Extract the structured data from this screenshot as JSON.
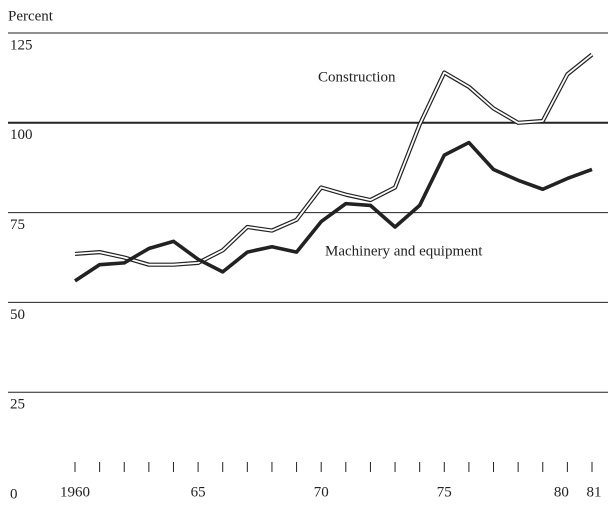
{
  "chart_data": {
    "type": "line",
    "y_axis_label": "Percent",
    "x": [
      1960,
      1961,
      1962,
      1963,
      1964,
      1965,
      1966,
      1967,
      1968,
      1969,
      1970,
      1971,
      1972,
      1973,
      1974,
      1975,
      1976,
      1977,
      1978,
      1979,
      1980,
      1981
    ],
    "series": [
      {
        "name": "Construction",
        "color": "#222222",
        "style": "double",
        "values": [
          63.5,
          64,
          62.5,
          60.5,
          60.5,
          61,
          64.5,
          71,
          70,
          73,
          82,
          80,
          78.5,
          82,
          99.5,
          114,
          110,
          104,
          100,
          100.5,
          113.5,
          119
        ]
      },
      {
        "name": "Machinery and equipment",
        "color": "#222222",
        "style": "solid",
        "values": [
          56,
          60.5,
          61,
          65,
          67,
          62,
          58.5,
          64,
          65.5,
          64,
          72.5,
          77.5,
          77,
          71,
          77,
          91,
          94.5,
          87,
          84,
          81.5,
          84.5,
          87
        ]
      }
    ],
    "xlim": [
      1960,
      1981
    ],
    "xticks": [
      {
        "value": 1960,
        "label": "1960"
      },
      {
        "value": 1965,
        "label": "65"
      },
      {
        "value": 1970,
        "label": "70"
      },
      {
        "value": 1975,
        "label": "75"
      },
      {
        "value": 1980,
        "label": "80"
      },
      {
        "value": 1981,
        "label": "81"
      }
    ],
    "ylim": [
      0,
      125
    ],
    "yticks": [
      0,
      25,
      50,
      75,
      100,
      125
    ],
    "grid": true,
    "reference_line": 100
  }
}
